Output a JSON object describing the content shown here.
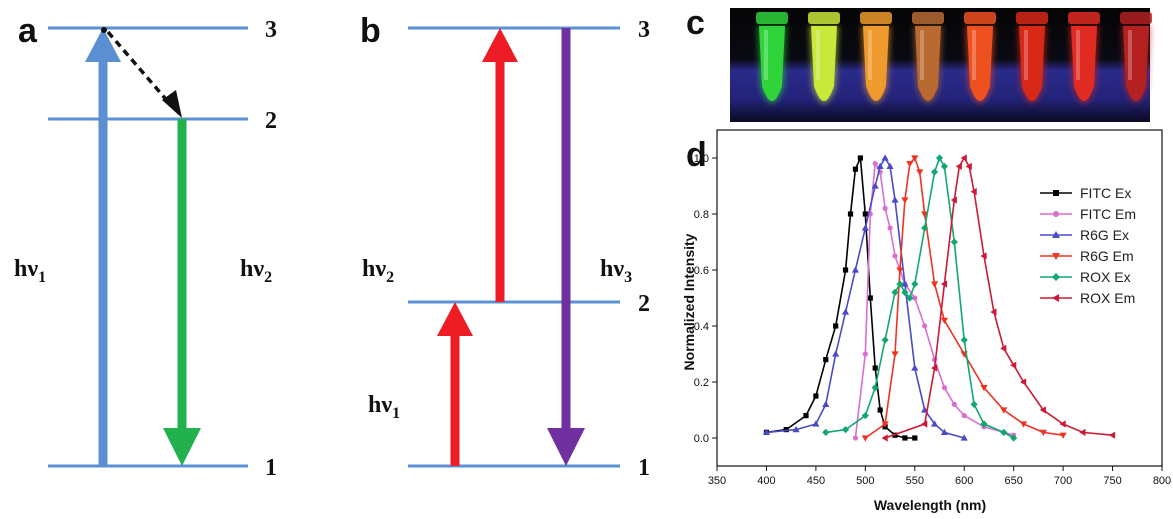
{
  "panels": {
    "a": {
      "letter": "a",
      "levels": [
        "1",
        "2",
        "3"
      ],
      "labels": [
        {
          "base": "hν",
          "sub": "1"
        },
        {
          "base": "hν",
          "sub": "2"
        }
      ]
    },
    "b": {
      "letter": "b",
      "levels": [
        "1",
        "2",
        "3"
      ],
      "labels": [
        {
          "base": "hν",
          "sub": "1"
        },
        {
          "base": "hν",
          "sub": "2"
        },
        {
          "base": "hν",
          "sub": "3"
        }
      ]
    },
    "c": {
      "letter": "c",
      "tube_colors": [
        "#2fd43a",
        "#c8e83a",
        "#ee9a2c",
        "#b86a30",
        "#ef5020",
        "#d82818",
        "#e02a22",
        "#b52020"
      ]
    },
    "d": {
      "letter": "d"
    }
  },
  "colors": {
    "level_line": "#5b8fd6",
    "blue_arrow": "#5a8fd2",
    "green_arrow": "#22b14c",
    "red_arrow": "#ee1c24",
    "purple_arrow": "#7030a0",
    "black_dashed": "#111111"
  },
  "chart_data": {
    "type": "line",
    "xlabel": "Wavelength (nm)",
    "ylabel": "Normalized Intensity",
    "xlim": [
      350,
      800
    ],
    "ylim": [
      -0.1,
      1.1
    ],
    "xticks": [
      350,
      400,
      450,
      500,
      550,
      600,
      650,
      700,
      750,
      800
    ],
    "yticks": [
      0.0,
      0.2,
      0.4,
      0.6,
      0.8,
      1.0
    ],
    "ytick_labels": [
      "0.0",
      "0.2",
      "0.4",
      "0.6",
      "0.8",
      "1.0"
    ],
    "legend_position": "right",
    "series": [
      {
        "name": "FITC Ex",
        "color": "#000000",
        "marker": "square",
        "x": [
          400,
          420,
          440,
          450,
          460,
          470,
          480,
          485,
          490,
          495,
          500,
          505,
          510,
          515,
          520,
          530,
          540,
          550
        ],
        "y": [
          0.02,
          0.03,
          0.08,
          0.15,
          0.28,
          0.4,
          0.6,
          0.8,
          0.96,
          1.0,
          0.8,
          0.5,
          0.25,
          0.1,
          0.04,
          0.01,
          0.0,
          0.0
        ]
      },
      {
        "name": "FITC Em",
        "color": "#d86fd0",
        "marker": "circle",
        "x": [
          490,
          500,
          505,
          510,
          515,
          520,
          525,
          530,
          540,
          550,
          560,
          570,
          580,
          590,
          600,
          620,
          640,
          650
        ],
        "y": [
          0.0,
          0.3,
          0.8,
          0.98,
          0.95,
          0.82,
          0.75,
          0.65,
          0.55,
          0.5,
          0.4,
          0.28,
          0.18,
          0.12,
          0.08,
          0.04,
          0.02,
          0.01
        ]
      },
      {
        "name": "R6G Ex",
        "color": "#4a4ac8",
        "marker": "triangle-up",
        "x": [
          400,
          430,
          450,
          460,
          470,
          480,
          490,
          500,
          510,
          515,
          520,
          525,
          530,
          540,
          550,
          560,
          570,
          580,
          600
        ],
        "y": [
          0.02,
          0.03,
          0.05,
          0.12,
          0.3,
          0.45,
          0.6,
          0.75,
          0.9,
          0.97,
          1.0,
          0.97,
          0.85,
          0.55,
          0.25,
          0.1,
          0.05,
          0.02,
          0.0
        ]
      },
      {
        "name": "R6G Em",
        "color": "#ee3322",
        "marker": "triangle-down",
        "x": [
          500,
          520,
          530,
          535,
          540,
          545,
          550,
          555,
          560,
          570,
          580,
          600,
          620,
          640,
          660,
          680,
          700
        ],
        "y": [
          0.0,
          0.05,
          0.3,
          0.6,
          0.85,
          0.98,
          1.0,
          0.95,
          0.8,
          0.55,
          0.42,
          0.3,
          0.18,
          0.1,
          0.05,
          0.02,
          0.01
        ]
      },
      {
        "name": "ROX Ex",
        "color": "#11a870",
        "marker": "diamond",
        "x": [
          460,
          480,
          500,
          510,
          520,
          530,
          535,
          540,
          545,
          550,
          560,
          570,
          575,
          580,
          590,
          600,
          610,
          620,
          640,
          650
        ],
        "y": [
          0.02,
          0.03,
          0.08,
          0.18,
          0.35,
          0.52,
          0.55,
          0.52,
          0.5,
          0.55,
          0.75,
          0.95,
          1.0,
          0.97,
          0.7,
          0.35,
          0.12,
          0.05,
          0.02,
          0.0
        ]
      },
      {
        "name": "ROX Em",
        "color": "#cc1a36",
        "marker": "triangle-left",
        "x": [
          520,
          560,
          570,
          580,
          590,
          595,
          600,
          605,
          610,
          620,
          630,
          640,
          650,
          660,
          680,
          700,
          720,
          750
        ],
        "y": [
          0.0,
          0.05,
          0.25,
          0.55,
          0.85,
          0.97,
          1.0,
          0.97,
          0.88,
          0.65,
          0.45,
          0.32,
          0.26,
          0.2,
          0.1,
          0.05,
          0.02,
          0.01
        ]
      }
    ]
  }
}
